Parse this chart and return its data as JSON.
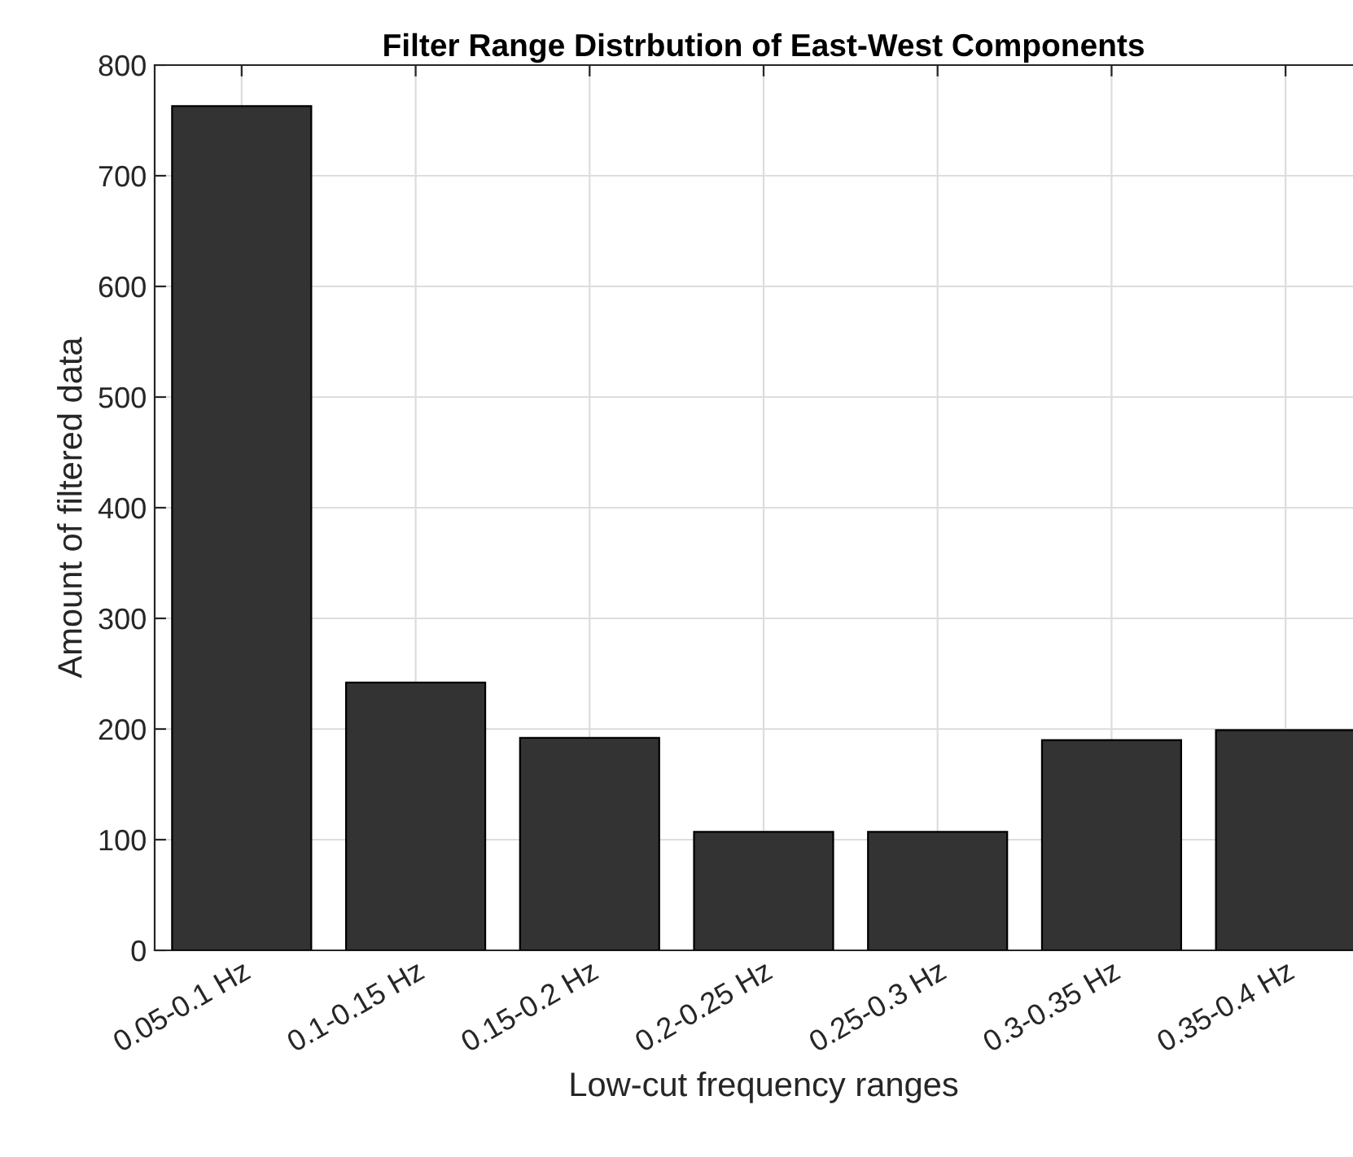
{
  "chart_data": {
    "type": "bar",
    "title": "Filter Range Distrbution of East-West Components",
    "xlabel": "Low-cut frequency ranges",
    "ylabel": "Amount of filtered data",
    "categories": [
      "0.05-0.1 Hz",
      "0.1-0.15 Hz",
      "0.15-0.2 Hz",
      "0.2-0.25 Hz",
      "0.25-0.3 Hz",
      "0.3-0.35 Hz",
      "0.35-0.4 Hz"
    ],
    "values": [
      763,
      242,
      192,
      107,
      107,
      190,
      199
    ],
    "color": "#333333",
    "ylim": [
      0,
      800
    ],
    "yticks": [
      0,
      100,
      200,
      300,
      400,
      500,
      600,
      700,
      800
    ],
    "grid": true,
    "legend": false
  }
}
